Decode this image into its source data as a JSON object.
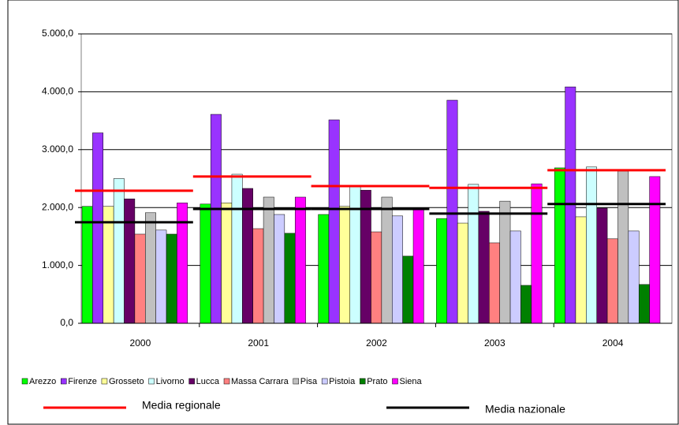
{
  "chart_data": {
    "type": "bar",
    "categories": [
      "2000",
      "2001",
      "2002",
      "2003",
      "2004"
    ],
    "series": [
      {
        "name": "Arezzo",
        "color": "#00ff00",
        "values": [
          2020,
          2060,
          1880,
          1810,
          2685
        ]
      },
      {
        "name": "Firenze",
        "color": "#9933ff",
        "values": [
          3290,
          3610,
          3515,
          3855,
          4085
        ]
      },
      {
        "name": "Grosseto",
        "color": "#ffff99",
        "values": [
          2020,
          2080,
          2020,
          1730,
          1840
        ]
      },
      {
        "name": "Livorno",
        "color": "#ccffff",
        "values": [
          2500,
          2575,
          2360,
          2400,
          2700
        ]
      },
      {
        "name": "Lucca",
        "color": "#660066",
        "values": [
          2150,
          2330,
          2300,
          1935,
          1990
        ]
      },
      {
        "name": "Massa Carrara",
        "color": "#ff8080",
        "values": [
          1540,
          1635,
          1580,
          1390,
          1460
        ]
      },
      {
        "name": "Pisa",
        "color": "#c0c0c0",
        "values": [
          1910,
          2180,
          2180,
          2110,
          2630
        ]
      },
      {
        "name": "Pistoia",
        "color": "#ccccff",
        "values": [
          1610,
          1880,
          1855,
          1595,
          1595
        ]
      },
      {
        "name": "Prato",
        "color": "#008000",
        "values": [
          1540,
          1555,
          1160,
          655,
          670
        ]
      },
      {
        "name": "Siena",
        "color": "#ff00ff",
        "values": [
          2080,
          2180,
          1975,
          2410,
          2535
        ]
      }
    ],
    "reference_lines": [
      {
        "name": "Media regionale",
        "color": "#ff0000",
        "values": [
          2290,
          2535,
          2370,
          2340,
          2645
        ]
      },
      {
        "name": "Media nazionale",
        "color": "#000000",
        "values": [
          1745,
          1975,
          1975,
          1895,
          2060
        ]
      }
    ],
    "ylim": [
      0,
      5000
    ],
    "yticks": [
      {
        "value": 0,
        "label": "0,0"
      },
      {
        "value": 1000,
        "label": "1.000,0"
      },
      {
        "value": 2000,
        "label": "2.000,0"
      },
      {
        "value": 3000,
        "label": "3.000,0"
      },
      {
        "value": 4000,
        "label": "4.000,0"
      },
      {
        "value": 5000,
        "label": "5.000,0"
      }
    ],
    "grid": true
  }
}
